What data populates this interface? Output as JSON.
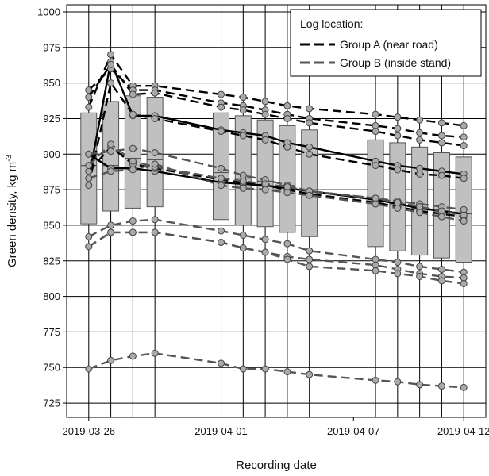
{
  "chart_data": {
    "type": "box-line",
    "title": "",
    "xlabel": "Recording date",
    "ylabel": "Green density, kg m",
    "ylabel_superscript": "-3",
    "x_ticks": [
      "2019-03-26",
      "2019-04-01",
      "2019-04-07",
      "2019-04-12"
    ],
    "y_ticks": [
      725,
      750,
      775,
      800,
      825,
      850,
      875,
      900,
      925,
      950,
      975,
      1000
    ],
    "xlim": [
      "2019-03-25",
      "2019-04-13"
    ],
    "ylim": [
      715,
      1005
    ],
    "grid": true,
    "legend_position": "top-right",
    "legend": {
      "title": "Log location:",
      "entries": [
        {
          "label": "Group A (near road)",
          "color": "#000000"
        },
        {
          "label": "Group B (inside stand)",
          "color": "#555555"
        }
      ]
    },
    "colors": {
      "box_fill": "#c0c0c0",
      "box_stroke": "#555555",
      "point_fill": "#aaaaaa",
      "group_a": "#000000",
      "group_b": "#555555"
    },
    "dates": [
      "2019-03-26",
      "2019-03-27",
      "2019-03-28",
      "2019-03-29",
      "2019-04-01",
      "2019-04-02",
      "2019-04-03",
      "2019-04-04",
      "2019-04-05",
      "2019-04-08",
      "2019-04-09",
      "2019-04-10",
      "2019-04-11",
      "2019-04-12"
    ],
    "boxes": [
      {
        "date": "2019-03-26",
        "q1": 851,
        "median": 892,
        "q3": 929
      },
      {
        "date": "2019-03-27",
        "q1": 860,
        "median": 892,
        "q3": 937
      },
      {
        "date": "2019-03-28",
        "q1": 862,
        "median": 897,
        "q3": 941
      },
      {
        "date": "2019-03-29",
        "q1": 863,
        "median": 896,
        "q3": 940
      },
      {
        "date": "2019-04-01",
        "q1": 854,
        "median": 887,
        "q3": 929
      },
      {
        "date": "2019-04-02",
        "q1": 850,
        "median": 883,
        "q3": 927
      },
      {
        "date": "2019-04-03",
        "q1": 849,
        "median": 881,
        "q3": 924
      },
      {
        "date": "2019-04-04",
        "q1": 845,
        "median": 878,
        "q3": 920
      },
      {
        "date": "2019-04-05",
        "q1": 842,
        "median": 875,
        "q3": 917
      },
      {
        "date": "2019-04-08",
        "q1": 835,
        "median": 868,
        "q3": 910
      },
      {
        "date": "2019-04-09",
        "q1": 832,
        "median": 865,
        "q3": 908
      },
      {
        "date": "2019-04-10",
        "q1": 829,
        "median": 862,
        "q3": 905
      },
      {
        "date": "2019-04-11",
        "q1": 827,
        "median": 860,
        "q3": 901
      },
      {
        "date": "2019-04-12",
        "q1": 824,
        "median": 858,
        "q3": 898
      }
    ],
    "series": [
      {
        "group": "A",
        "style": "solid",
        "values": [
          883,
          965,
          927,
          927,
          917,
          915,
          913,
          908,
          905,
          895,
          892,
          890,
          888,
          886
        ]
      },
      {
        "group": "A",
        "style": "solid",
        "values": [
          900,
          890,
          890,
          888,
          880,
          879,
          878,
          876,
          874,
          868,
          865,
          862,
          860,
          858
        ]
      },
      {
        "group": "A",
        "style": "dashed",
        "values": [
          933,
          970,
          948,
          948,
          942,
          940,
          937,
          934,
          932,
          928,
          926,
          924,
          922,
          920
        ]
      },
      {
        "group": "A",
        "style": "dashed",
        "values": [
          945,
          960,
          945,
          945,
          936,
          934,
          931,
          928,
          925,
          920,
          918,
          915,
          913,
          912
        ]
      },
      {
        "group": "A",
        "style": "dashed",
        "values": [
          940,
          963,
          942,
          943,
          933,
          931,
          928,
          925,
          922,
          916,
          913,
          910,
          908,
          906
        ]
      },
      {
        "group": "A",
        "style": "dashed",
        "values": [
          878,
          950,
          928,
          925,
          916,
          913,
          910,
          905,
          900,
          892,
          889,
          886,
          885,
          883
        ]
      },
      {
        "group": "A",
        "style": "dashed",
        "values": [
          888,
          905,
          893,
          890,
          882,
          880,
          878,
          875,
          872,
          866,
          863,
          860,
          858,
          856
        ]
      },
      {
        "group": "B",
        "style": "dashed",
        "values": [
          900,
          902,
          904,
          901,
          890,
          885,
          882,
          878,
          874,
          869,
          867,
          865,
          863,
          861
        ]
      },
      {
        "group": "B",
        "style": "dashed",
        "values": [
          892,
          907,
          895,
          891,
          883,
          881,
          879,
          877,
          874,
          869,
          866,
          863,
          860,
          857
        ]
      },
      {
        "group": "B",
        "style": "dashed",
        "values": [
          883,
          888,
          889,
          893,
          878,
          876,
          875,
          873,
          871,
          865,
          862,
          859,
          856,
          853
        ]
      },
      {
        "group": "B",
        "style": "dashed",
        "values": [
          842,
          850,
          853,
          854,
          846,
          843,
          840,
          837,
          832,
          826,
          824,
          821,
          819,
          817
        ]
      },
      {
        "group": "B",
        "style": "dashed",
        "values": [
          835,
          845,
          845,
          845,
          838,
          834,
          831,
          828,
          826,
          822,
          819,
          816,
          814,
          813
        ]
      },
      {
        "group": "B",
        "style": "dashed",
        "values": [
          835,
          845,
          845,
          845,
          838,
          834,
          831,
          826,
          821,
          818,
          816,
          814,
          811,
          809
        ]
      },
      {
        "group": "B",
        "style": "dashed",
        "values": [
          749,
          755,
          758,
          760,
          753,
          749,
          749,
          747,
          745,
          741,
          740,
          738,
          737,
          736
        ]
      }
    ]
  }
}
